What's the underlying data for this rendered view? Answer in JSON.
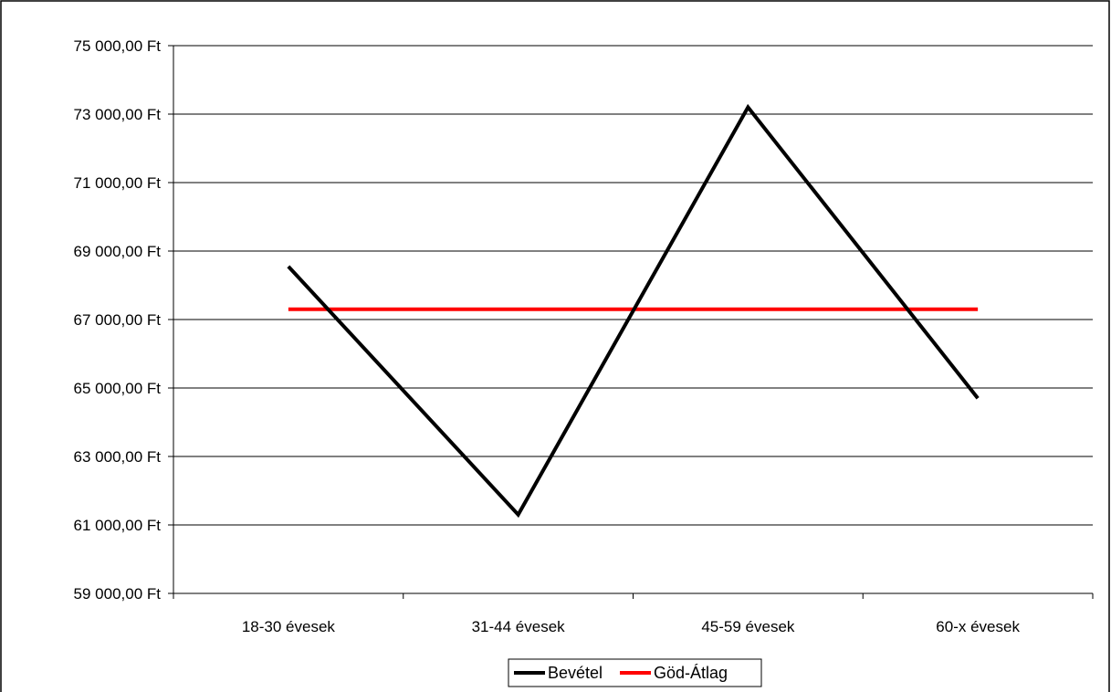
{
  "chart_data": {
    "type": "line",
    "categories": [
      "18-30 évesek",
      "31-44 évesek",
      "45-59 évesek",
      "60-x évesek"
    ],
    "series": [
      {
        "name": "Bevétel",
        "values": [
          68550,
          61300,
          73200,
          64700
        ],
        "color": "#000000"
      },
      {
        "name": "Göd-Átlag",
        "values": [
          67300,
          67300,
          67300,
          67300
        ],
        "color": "#ff0000"
      }
    ],
    "y_ticks": [
      59000,
      61000,
      63000,
      65000,
      67000,
      69000,
      71000,
      73000,
      75000
    ],
    "y_tick_labels": [
      "59 000,00 Ft",
      "61 000,00 Ft",
      "63 000,00 Ft",
      "65 000,00 Ft",
      "67 000,00 Ft",
      "69 000,00 Ft",
      "71 000,00 Ft",
      "73 000,00 Ft",
      "75 000,00 Ft"
    ],
    "ylim": [
      59000,
      75000
    ],
    "grid": true,
    "legend_position": "bottom-center"
  }
}
